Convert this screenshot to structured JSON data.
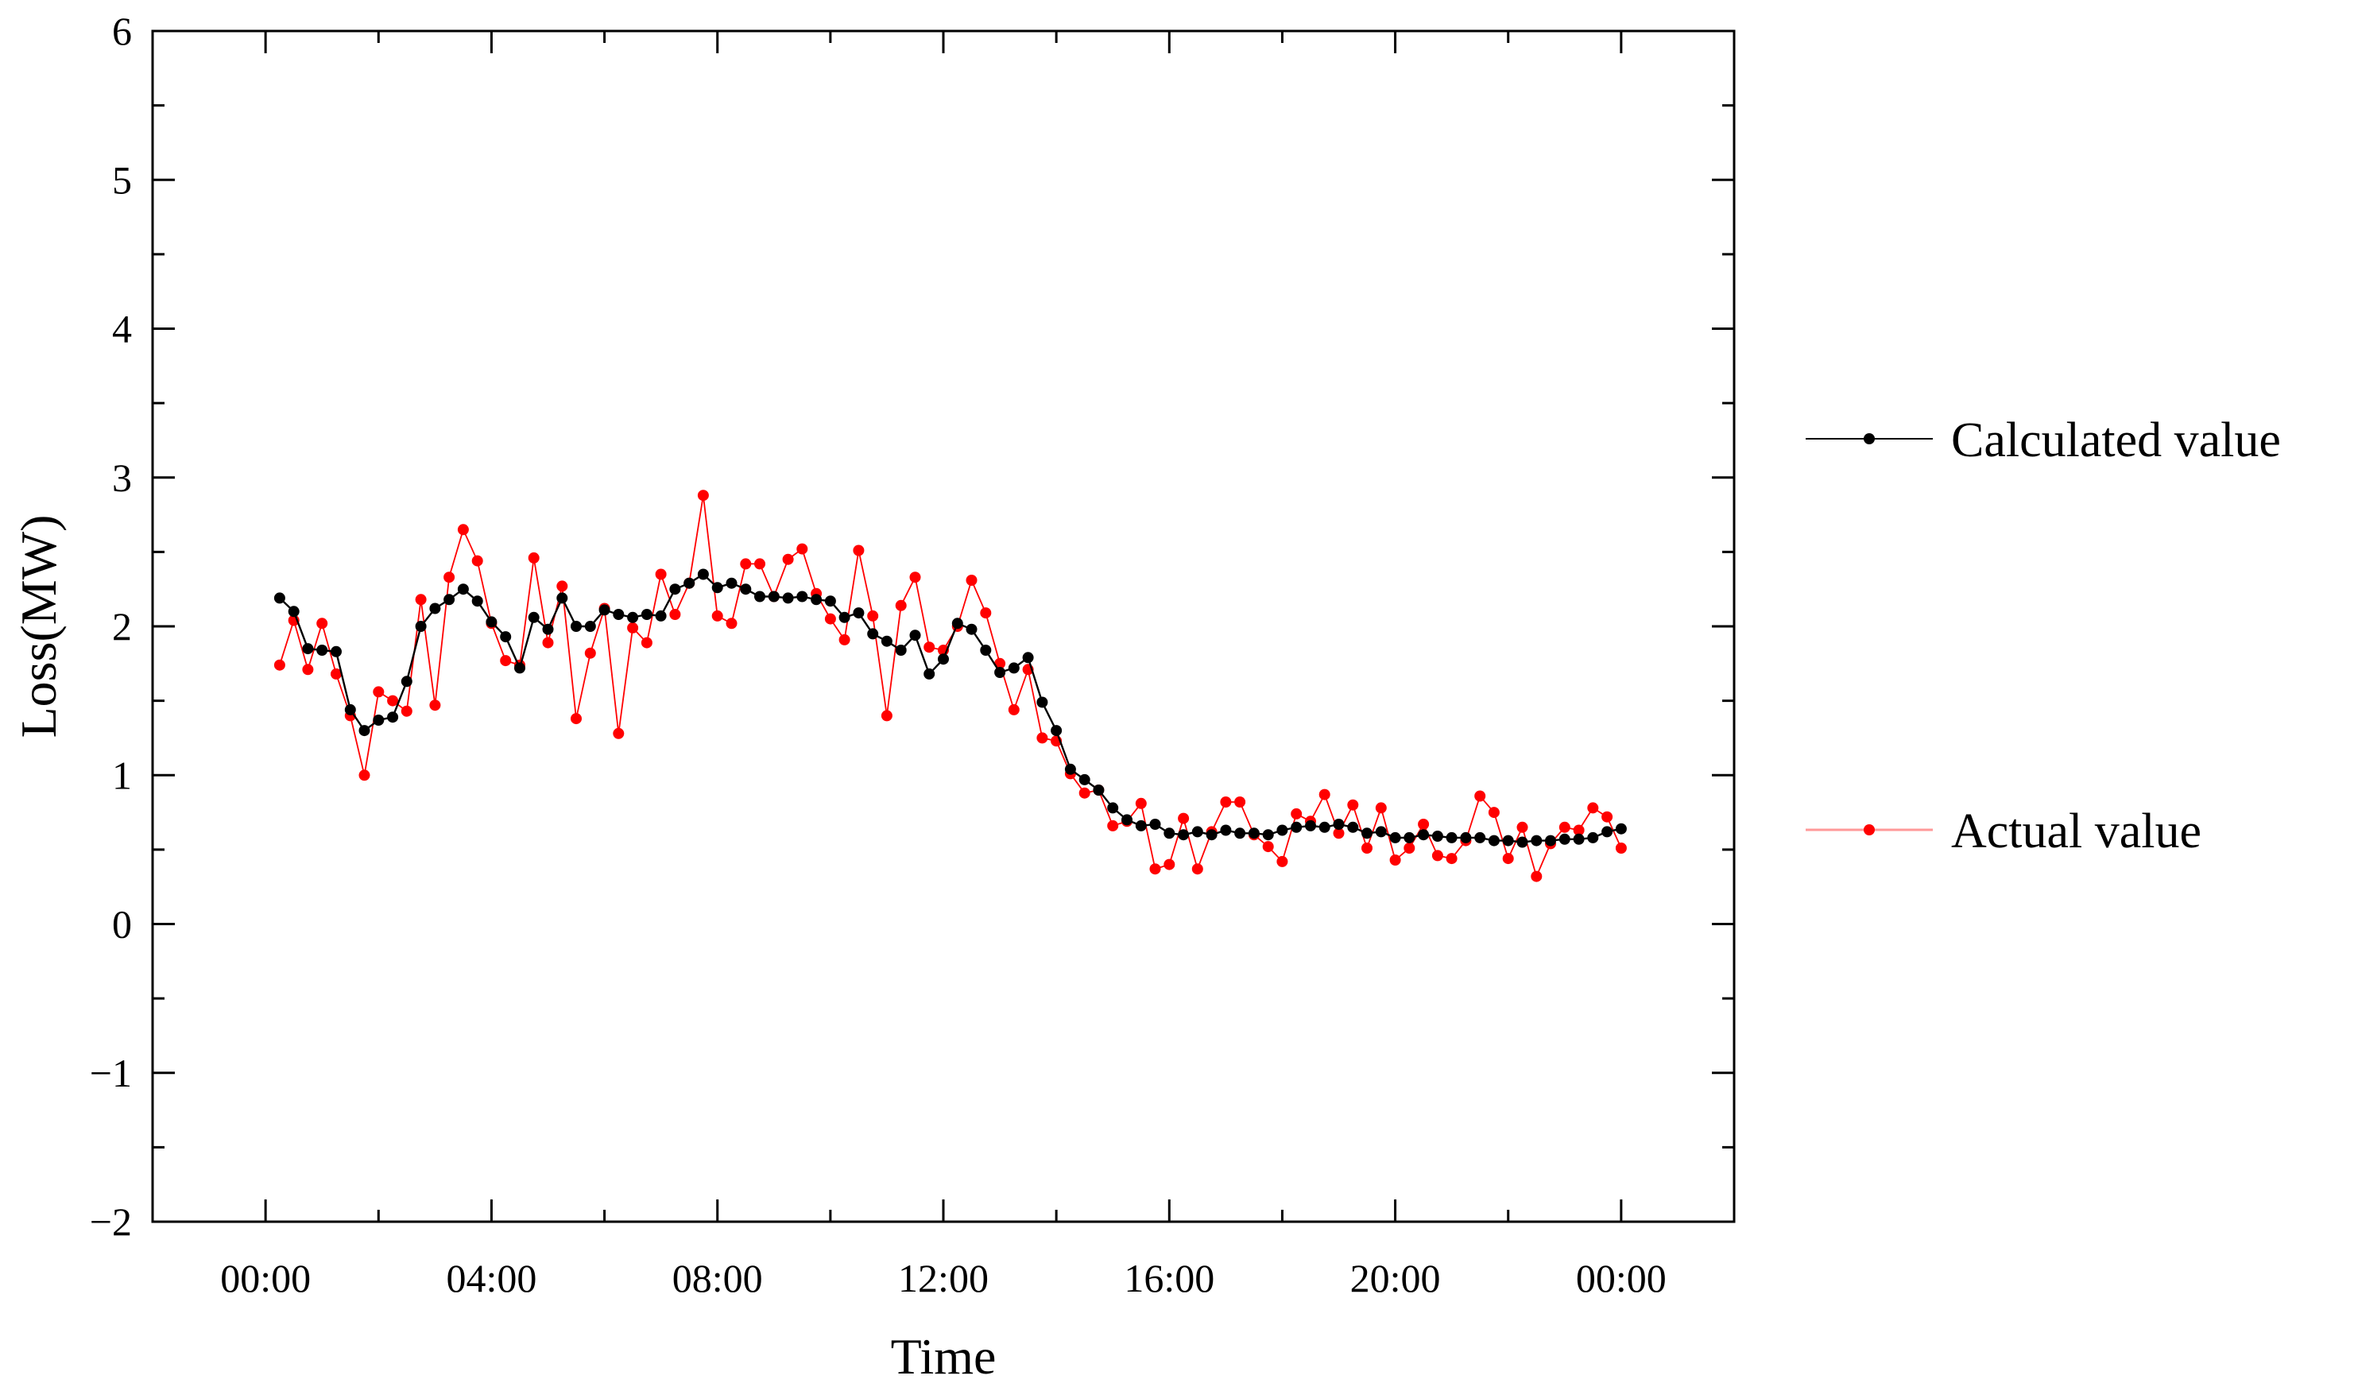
{
  "chart_data": {
    "type": "line",
    "title": "",
    "xlabel": "Time",
    "ylabel": "Loss(MW)",
    "ylim": [
      -2,
      6
    ],
    "yticks": [
      -2,
      -1,
      0,
      1,
      2,
      3,
      4,
      5,
      6
    ],
    "ytick_labels": [
      "−2",
      "−1",
      "0",
      "1",
      "2",
      "3",
      "4",
      "5",
      "6"
    ],
    "xlim": [
      -2,
      26
    ],
    "xticks": [
      0,
      4,
      8,
      12,
      16,
      20,
      24
    ],
    "xtick_labels": [
      "00:00",
      "04:00",
      "08:00",
      "12:00",
      "16:00",
      "20:00",
      "00:00"
    ],
    "grid": false,
    "legend_position": "right",
    "x": [
      0.25,
      0.5,
      0.75,
      1.0,
      1.25,
      1.5,
      1.75,
      2.0,
      2.25,
      2.5,
      2.75,
      3.0,
      3.25,
      3.5,
      3.75,
      4.0,
      4.25,
      4.5,
      4.75,
      5.0,
      5.25,
      5.5,
      5.75,
      6.0,
      6.25,
      6.5,
      6.75,
      7.0,
      7.25,
      7.5,
      7.75,
      8.0,
      8.25,
      8.5,
      8.75,
      9.0,
      9.25,
      9.5,
      9.75,
      10.0,
      10.25,
      10.5,
      10.75,
      11.0,
      11.25,
      11.5,
      11.75,
      12.0,
      12.25,
      12.5,
      12.75,
      13.0,
      13.25,
      13.5,
      13.75,
      14.0,
      14.25,
      14.5,
      14.75,
      15.0,
      15.25,
      15.5,
      15.75,
      16.0,
      16.25,
      16.5,
      16.75,
      17.0,
      17.25,
      17.5,
      17.75,
      18.0,
      18.25,
      18.5,
      18.75,
      19.0,
      19.25,
      19.5,
      19.75,
      20.0,
      20.25,
      20.5,
      20.75,
      21.0,
      21.25,
      21.5,
      21.75,
      22.0,
      22.25,
      22.5,
      22.75,
      23.0,
      23.25,
      23.5,
      23.75,
      24.0
    ],
    "series": [
      {
        "name": "Calculated value",
        "color": "#000000",
        "values": [
          2.19,
          2.1,
          1.85,
          1.84,
          1.83,
          1.44,
          1.3,
          1.37,
          1.39,
          1.63,
          2.0,
          2.12,
          2.18,
          2.25,
          2.17,
          2.03,
          1.93,
          1.72,
          2.06,
          1.98,
          2.19,
          2.0,
          2.0,
          2.11,
          2.08,
          2.06,
          2.08,
          2.07,
          2.25,
          2.29,
          2.35,
          2.26,
          2.29,
          2.25,
          2.2,
          2.2,
          2.19,
          2.2,
          2.18,
          2.17,
          2.06,
          2.09,
          1.95,
          1.9,
          1.84,
          1.94,
          1.68,
          1.78,
          2.02,
          1.98,
          1.84,
          1.69,
          1.72,
          1.79,
          1.49,
          1.3,
          1.04,
          0.97,
          0.9,
          0.78,
          0.7,
          0.66,
          0.67,
          0.61,
          0.6,
          0.62,
          0.6,
          0.63,
          0.61,
          0.61,
          0.6,
          0.63,
          0.65,
          0.66,
          0.65,
          0.67,
          0.65,
          0.61,
          0.62,
          0.58,
          0.58,
          0.6,
          0.59,
          0.58,
          0.58,
          0.58,
          0.56,
          0.56,
          0.55,
          0.56,
          0.56,
          0.57,
          0.57,
          0.58,
          0.62,
          0.64
        ]
      },
      {
        "name": "Actual value",
        "color": "#ff0000",
        "values": [
          1.74,
          2.04,
          1.71,
          2.02,
          1.68,
          1.4,
          1.0,
          1.56,
          1.5,
          1.43,
          2.18,
          1.47,
          2.33,
          2.65,
          2.44,
          2.02,
          1.77,
          1.74,
          2.46,
          1.89,
          2.27,
          1.38,
          1.82,
          2.12,
          1.28,
          1.99,
          1.89,
          2.35,
          2.08,
          2.29,
          2.88,
          2.07,
          2.02,
          2.42,
          2.42,
          2.2,
          2.45,
          2.52,
          2.22,
          2.05,
          1.91,
          2.51,
          2.07,
          1.4,
          2.14,
          2.33,
          1.86,
          1.84,
          2.0,
          2.31,
          2.09,
          1.75,
          1.44,
          1.71,
          1.25,
          1.23,
          1.01,
          0.88,
          0.9,
          0.66,
          0.69,
          0.81,
          0.37,
          0.4,
          0.71,
          0.37,
          0.62,
          0.82,
          0.82,
          0.6,
          0.52,
          0.42,
          0.74,
          0.69,
          0.87,
          0.61,
          0.8,
          0.51,
          0.78,
          0.43,
          0.51,
          0.67,
          0.46,
          0.44,
          0.56,
          0.86,
          0.75,
          0.44,
          0.65,
          0.32,
          0.54,
          0.65,
          0.63,
          0.78,
          0.72,
          0.51
        ]
      }
    ]
  }
}
